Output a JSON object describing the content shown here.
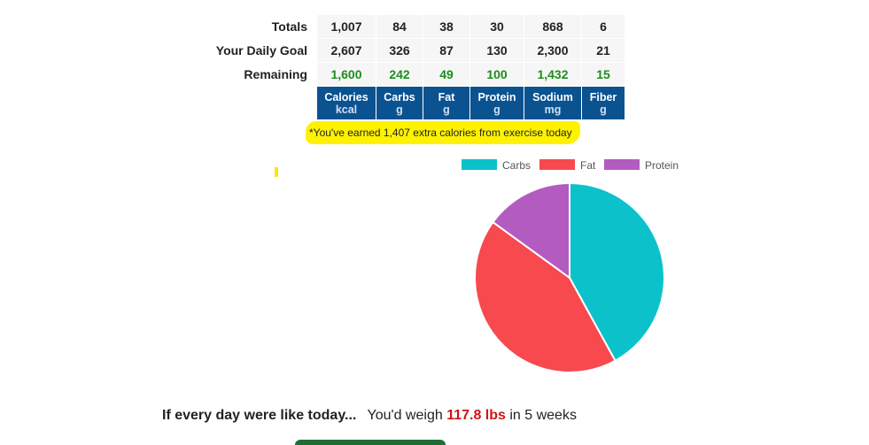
{
  "table": {
    "rows": [
      {
        "label": "Totals",
        "values": [
          "1,007",
          "84",
          "38",
          "30",
          "868",
          "6"
        ]
      },
      {
        "label": "Your Daily Goal",
        "values": [
          "2,607",
          "326",
          "87",
          "130",
          "2,300",
          "21"
        ]
      },
      {
        "label": "Remaining",
        "values": [
          "1,600",
          "242",
          "49",
          "100",
          "1,432",
          "15"
        ]
      }
    ],
    "columns": [
      {
        "name": "Calories",
        "unit": "kcal"
      },
      {
        "name": "Carbs",
        "unit": "g"
      },
      {
        "name": "Fat",
        "unit": "g"
      },
      {
        "name": "Protein",
        "unit": "g"
      },
      {
        "name": "Sodium",
        "unit": "mg"
      },
      {
        "name": "Fiber",
        "unit": "g"
      }
    ]
  },
  "exercise_note": "*You've earned 1,407 extra calories from exercise today",
  "colors": {
    "header_bg": "#0b5290",
    "remaining_text": "#1a8f1a",
    "highlight": "#fff200",
    "weight_text": "#d01515"
  },
  "chart_data": {
    "type": "pie",
    "labels": [
      "Carbs",
      "Fat",
      "Protein"
    ],
    "values": [
      42,
      43,
      15
    ],
    "colors": [
      "#0bc2cb",
      "#f7494e",
      "#b45bc1"
    ],
    "legend_position": "top"
  },
  "projection": {
    "lead": "If every day were like today...",
    "prefix": "You'd weigh",
    "weight": "117.8 lbs",
    "suffix": "in 5 weeks"
  }
}
